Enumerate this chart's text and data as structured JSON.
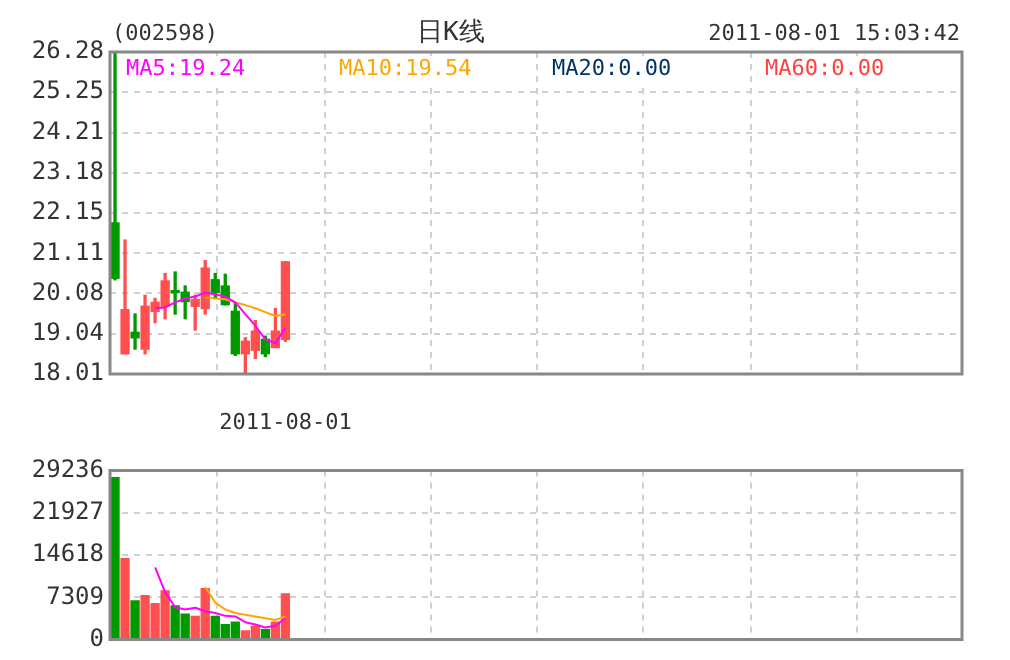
{
  "chart_data": [
    {
      "type": "candlestick",
      "annotations": [
        "(002598)",
        "日K线",
        "2011-08-01 15:03:42"
      ],
      "categories": [
        null,
        null,
        null,
        null,
        null,
        null,
        null,
        null,
        null,
        null,
        null,
        null,
        null,
        null,
        null,
        null,
        null,
        "2011-08-01"
      ],
      "ohlc": [
        [
          21.89,
          26.28,
          20.43,
          20.47
        ],
        [
          18.53,
          21.45,
          18.53,
          19.66
        ],
        [
          19.08,
          19.55,
          18.65,
          18.94
        ],
        [
          18.65,
          20.03,
          18.53,
          19.75
        ],
        [
          19.62,
          19.95,
          19.33,
          19.85
        ],
        [
          19.75,
          20.59,
          19.43,
          20.4
        ],
        [
          20.14,
          20.63,
          19.55,
          20.1
        ],
        [
          20.11,
          20.27,
          19.43,
          19.87
        ],
        [
          19.75,
          20.03,
          19.14,
          19.92
        ],
        [
          19.69,
          20.92,
          19.55,
          20.73
        ],
        [
          20.43,
          20.59,
          19.95,
          20.11
        ],
        [
          20.27,
          20.57,
          19.79,
          19.79
        ],
        [
          19.62,
          19.82,
          18.49,
          18.53
        ],
        [
          18.53,
          18.94,
          18.01,
          18.85
        ],
        [
          18.62,
          19.38,
          18.41,
          19.11
        ],
        [
          18.9,
          18.98,
          18.46,
          18.53
        ],
        [
          18.69,
          19.69,
          18.69,
          19.11
        ],
        [
          18.9,
          20.89,
          18.85,
          20.89
        ]
      ],
      "colors": [
        "#009900",
        "#ff5050",
        "#009900",
        "#ff5050",
        "#ff5050",
        "#ff5050",
        "#009900",
        "#009900",
        "#ff5050",
        "#ff5050",
        "#009900",
        "#009900",
        "#009900",
        "#ff5050",
        "#ff5050",
        "#009900",
        "#ff5050",
        "#ff5050"
      ],
      "series": [
        {
          "name": "MA5:19.24",
          "type": "line",
          "color": "#ff00ff",
          "values": [
            null,
            null,
            null,
            null,
            19.7,
            19.72,
            19.85,
            19.95,
            20.0,
            20.1,
            20.05,
            20.0,
            19.85,
            19.55,
            19.25,
            18.9,
            18.8,
            19.2
          ]
        },
        {
          "name": "MA10:19.54",
          "type": "line",
          "color": "#ffa500",
          "values": [
            null,
            null,
            null,
            null,
            null,
            null,
            null,
            null,
            null,
            19.98,
            19.95,
            19.93,
            19.85,
            19.78,
            19.7,
            19.6,
            19.5,
            19.54
          ]
        },
        {
          "name": "MA20:0.00",
          "type": "line",
          "color": "#003366",
          "values": [
            null,
            null,
            null,
            null,
            null,
            null,
            null,
            null,
            null,
            null,
            null,
            null,
            null,
            null,
            null,
            null,
            null,
            null
          ]
        },
        {
          "name": "MA60:0.00",
          "type": "line",
          "color": "#ff4040",
          "values": [
            null,
            null,
            null,
            null,
            null,
            null,
            null,
            null,
            null,
            null,
            null,
            null,
            null,
            null,
            null,
            null,
            null,
            null
          ]
        }
      ],
      "ylim": [
        18.01,
        26.28
      ],
      "yticks": [
        18.01,
        19.04,
        20.08,
        21.11,
        22.15,
        23.18,
        24.21,
        25.25,
        26.28
      ],
      "grid": true
    },
    {
      "type": "bar",
      "categories": [
        null,
        null,
        null,
        null,
        null,
        null,
        null,
        null,
        null,
        null,
        null,
        null,
        null,
        null,
        null,
        null,
        null,
        null
      ],
      "series": [
        {
          "type": "bar",
          "colors": [
            "#009900",
            "#ff5050",
            "#009900",
            "#ff5050",
            "#ff5050",
            "#ff5050",
            "#009900",
            "#009900",
            "#ff5050",
            "#ff5050",
            "#009900",
            "#009900",
            "#009900",
            "#ff5050",
            "#ff5050",
            "#009900",
            "#ff5050",
            "#ff5050"
          ],
          "values": [
            28000,
            14000,
            6700,
            7600,
            6200,
            8400,
            5800,
            4400,
            4000,
            8800,
            4000,
            2600,
            3000,
            1500,
            2300,
            1700,
            3000,
            7900
          ]
        },
        {
          "type": "line",
          "color": "#ff00ff",
          "values": [
            null,
            null,
            null,
            null,
            12500,
            8200,
            5600,
            5200,
            5500,
            4900,
            4600,
            4100,
            4000,
            3000,
            2600,
            2100,
            2400,
            3700
          ]
        },
        {
          "type": "line",
          "color": "#ffa500",
          "values": [
            null,
            null,
            null,
            null,
            null,
            null,
            null,
            null,
            null,
            9100,
            6400,
            5200,
            4600,
            4300,
            4000,
            3700,
            3400,
            4000
          ]
        }
      ],
      "ylim": [
        0,
        29236
      ],
      "yticks": [
        0,
        7309,
        14618,
        21927,
        29236
      ],
      "grid": true,
      "tick_labels": "y"
    }
  ]
}
